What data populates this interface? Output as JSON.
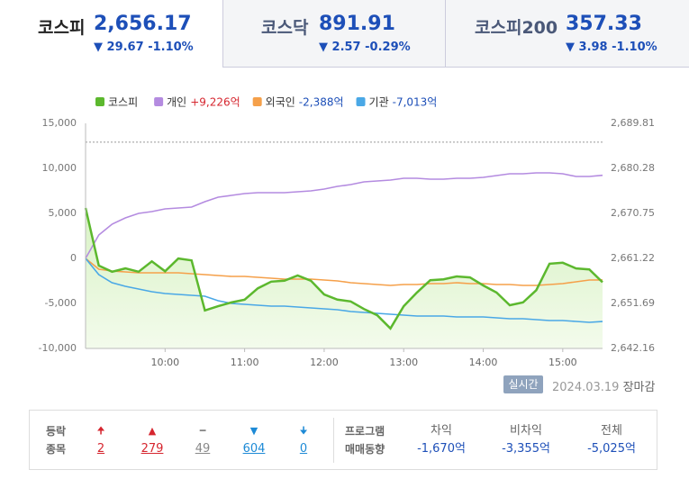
{
  "tabs": [
    {
      "name": "코스피",
      "value": "2,656.17",
      "change": "29.67",
      "rate": "-1.10%"
    },
    {
      "name": "코스닥",
      "value": "891.91",
      "change": "2.57",
      "rate": "-0.29%"
    },
    {
      "name": "코스피200",
      "value": "357.33",
      "change": "3.98",
      "rate": "-1.10%"
    }
  ],
  "chart_data": {
    "type": "line",
    "x": [
      "09:00",
      "09:10",
      "09:20",
      "09:30",
      "09:40",
      "09:50",
      "10:00",
      "10:10",
      "10:20",
      "10:30",
      "10:40",
      "10:50",
      "11:00",
      "11:10",
      "11:20",
      "11:30",
      "11:40",
      "11:50",
      "12:00",
      "12:10",
      "12:20",
      "12:30",
      "12:40",
      "12:50",
      "13:00",
      "13:10",
      "13:20",
      "13:30",
      "13:40",
      "13:50",
      "14:00",
      "14:10",
      "14:20",
      "14:30",
      "14:40",
      "14:50",
      "15:00",
      "15:10",
      "15:20",
      "15:30"
    ],
    "xticks": [
      "10:00",
      "11:00",
      "12:00",
      "13:00",
      "14:00",
      "15:00"
    ],
    "series": [
      {
        "name": "코스피",
        "color": "#5cb82e",
        "axis": "y2",
        "values": [
          2671.9,
          2659.7,
          2658.4,
          2659.1,
          2658.4,
          2660.6,
          2658.5,
          2661.2,
          2660.8,
          2650.2,
          2651.1,
          2651.9,
          2652.5,
          2654.9,
          2656.3,
          2656.5,
          2657.6,
          2656.5,
          2653.6,
          2652.5,
          2652.1,
          2650.5,
          2649.2,
          2646.4,
          2651.1,
          2654.0,
          2656.6,
          2656.8,
          2657.4,
          2657.2,
          2655.5,
          2654.0,
          2651.3,
          2651.9,
          2654.5,
          2660.1,
          2660.3,
          2659.1,
          2658.9,
          2656.17
        ]
      },
      {
        "name": "개인",
        "legend_value": "+9,226억",
        "color": "#b48be0",
        "values": [
          0,
          2600,
          3800,
          4500,
          5000,
          5200,
          5500,
          5600,
          5700,
          6300,
          6800,
          7000,
          7200,
          7300,
          7300,
          7300,
          7400,
          7500,
          7700,
          8000,
          8200,
          8500,
          8600,
          8700,
          8900,
          8900,
          8800,
          8800,
          8900,
          8900,
          9000,
          9200,
          9400,
          9400,
          9500,
          9500,
          9400,
          9100,
          9100,
          9226
        ]
      },
      {
        "name": "외국인",
        "legend_value": "-2,388억",
        "color": "#f5a04a",
        "values": [
          0,
          -1200,
          -1400,
          -1500,
          -1600,
          -1600,
          -1600,
          -1600,
          -1700,
          -1800,
          -1900,
          -2000,
          -2000,
          -2100,
          -2200,
          -2300,
          -2300,
          -2300,
          -2400,
          -2500,
          -2700,
          -2800,
          -2900,
          -3000,
          -2900,
          -2900,
          -2800,
          -2800,
          -2700,
          -2800,
          -2800,
          -2900,
          -2900,
          -3000,
          -3000,
          -2900,
          -2800,
          -2600,
          -2400,
          -2388
        ]
      },
      {
        "name": "기관",
        "legend_value": "-7,013억",
        "color": "#4aa8e6",
        "values": [
          0,
          -1800,
          -2700,
          -3100,
          -3400,
          -3700,
          -3900,
          -4000,
          -4100,
          -4200,
          -4700,
          -5000,
          -5100,
          -5200,
          -5300,
          -5300,
          -5400,
          -5500,
          -5600,
          -5700,
          -5900,
          -6000,
          -6100,
          -6200,
          -6300,
          -6400,
          -6400,
          -6400,
          -6500,
          -6500,
          -6500,
          -6600,
          -6700,
          -6700,
          -6800,
          -6900,
          -6900,
          -7000,
          -7100,
          -7013
        ]
      }
    ],
    "ylim": [
      -10000,
      15000
    ],
    "yticks": [
      {
        "value": -10000,
        "label": "-10,000"
      },
      {
        "value": -5000,
        "label": "-5,000"
      },
      0,
      {
        "value": 5000,
        "label": "5,000"
      },
      {
        "value": 10000,
        "label": "10,000"
      },
      {
        "value": 15000,
        "label": "15,000"
      }
    ],
    "y2lim": [
      2642.16,
      2689.81
    ],
    "y2ticks": [
      {
        "value": 2642.16,
        "label": "2,642.16"
      },
      {
        "value": 2651.69,
        "label": "2,651.69"
      },
      {
        "value": 2661.22,
        "label": "2,661.22"
      },
      {
        "value": 2670.75,
        "label": "2,670.75"
      },
      {
        "value": 2680.28,
        "label": "2,680.28"
      },
      {
        "value": 2689.81,
        "label": "2,689.81"
      }
    ],
    "reference_line": 2685.84
  },
  "status": {
    "badge": "실시간",
    "date": "2024.03.19",
    "state": "장마감"
  },
  "breadth": {
    "label": [
      "등락",
      "종목"
    ],
    "items": [
      "2",
      "279",
      "49",
      "604",
      "0"
    ]
  },
  "program": {
    "label": [
      "프로그램",
      "매매동향"
    ],
    "columns": [
      {
        "name": "차익",
        "value": "-1,670억"
      },
      {
        "name": "비차익",
        "value": "-3,355억"
      },
      {
        "name": "전체",
        "value": "-5,025억"
      }
    ]
  }
}
